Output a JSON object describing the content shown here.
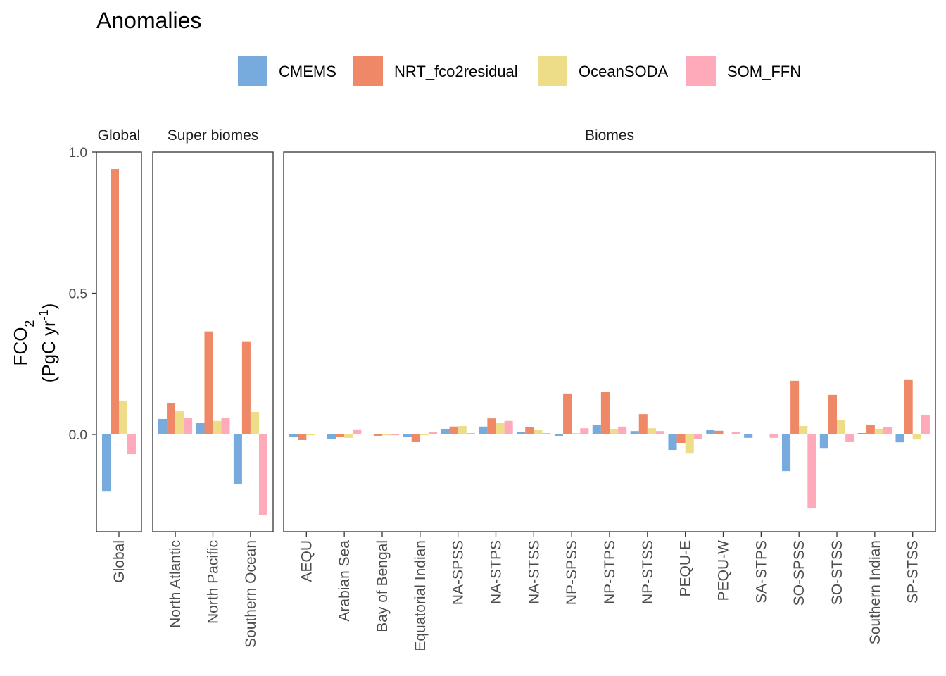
{
  "chart_data": {
    "type": "bar",
    "title": "Anomalies",
    "ylabel_main": "FCO",
    "ylabel_sub": "2",
    "ylabel_unit_pre": "(PgC yr",
    "ylabel_unit_sup": "-1",
    "ylabel_unit_post": ")",
    "ylim": [
      -0.35,
      1.0
    ],
    "yticks": [
      0.0,
      0.5,
      1.0
    ],
    "ytick_labels": [
      "0.0",
      "0.5",
      "1.0"
    ],
    "legend_position": "top",
    "grid": false,
    "series": [
      {
        "name": "CMEMS",
        "color": "#77AADD"
      },
      {
        "name": "NRT_fco2residual",
        "color": "#EE8866"
      },
      {
        "name": "OceanSODA",
        "color": "#EEDD88"
      },
      {
        "name": "SOM_FFN",
        "color": "#FFAABB"
      }
    ],
    "panels": [
      {
        "title": "Global",
        "categories": [
          "Global"
        ],
        "values": [
          [
            -0.2
          ],
          [
            0.94
          ],
          [
            0.12
          ],
          [
            -0.07
          ]
        ]
      },
      {
        "title": "Super biomes",
        "categories": [
          "North Atlantic",
          "North Pacific",
          "Southern Ocean"
        ],
        "values": [
          [
            0.055,
            0.04,
            -0.175
          ],
          [
            0.11,
            0.365,
            0.33
          ],
          [
            0.082,
            0.048,
            0.08
          ],
          [
            0.058,
            0.06,
            -0.285
          ]
        ]
      },
      {
        "title": "Biomes",
        "categories": [
          "AEQU",
          "Arabian Sea",
          "Bay of Bengal",
          "Equatorial Indian",
          "NA-SPSS",
          "NA-STPS",
          "NA-STSS",
          "NP-SPSS",
          "NP-STPS",
          "NP-STSS",
          "PEQU-E",
          "PEQU-W",
          "SA-STPS",
          "SO-SPSS",
          "SO-STSS",
          "Southern Indian",
          "SP-STSS"
        ],
        "values": [
          [
            -0.01,
            -0.015,
            0.0,
            -0.008,
            0.02,
            0.028,
            0.008,
            -0.005,
            0.033,
            0.012,
            -0.055,
            0.015,
            -0.012,
            -0.13,
            -0.048,
            0.005,
            -0.028
          ],
          [
            -0.02,
            -0.008,
            -0.005,
            -0.025,
            0.028,
            0.057,
            0.025,
            0.145,
            0.15,
            0.072,
            -0.03,
            0.013,
            0.0,
            0.19,
            0.14,
            0.035,
            0.195
          ],
          [
            -0.003,
            -0.012,
            -0.003,
            -0.003,
            0.03,
            0.04,
            0.015,
            0.005,
            0.02,
            0.022,
            -0.068,
            0.0,
            0.0,
            0.03,
            0.05,
            0.02,
            -0.018
          ],
          [
            0.0,
            0.018,
            -0.003,
            0.01,
            0.005,
            0.048,
            0.005,
            0.022,
            0.028,
            0.012,
            -0.015,
            0.01,
            -0.012,
            -0.262,
            -0.025,
            0.025,
            0.07
          ]
        ]
      }
    ]
  }
}
